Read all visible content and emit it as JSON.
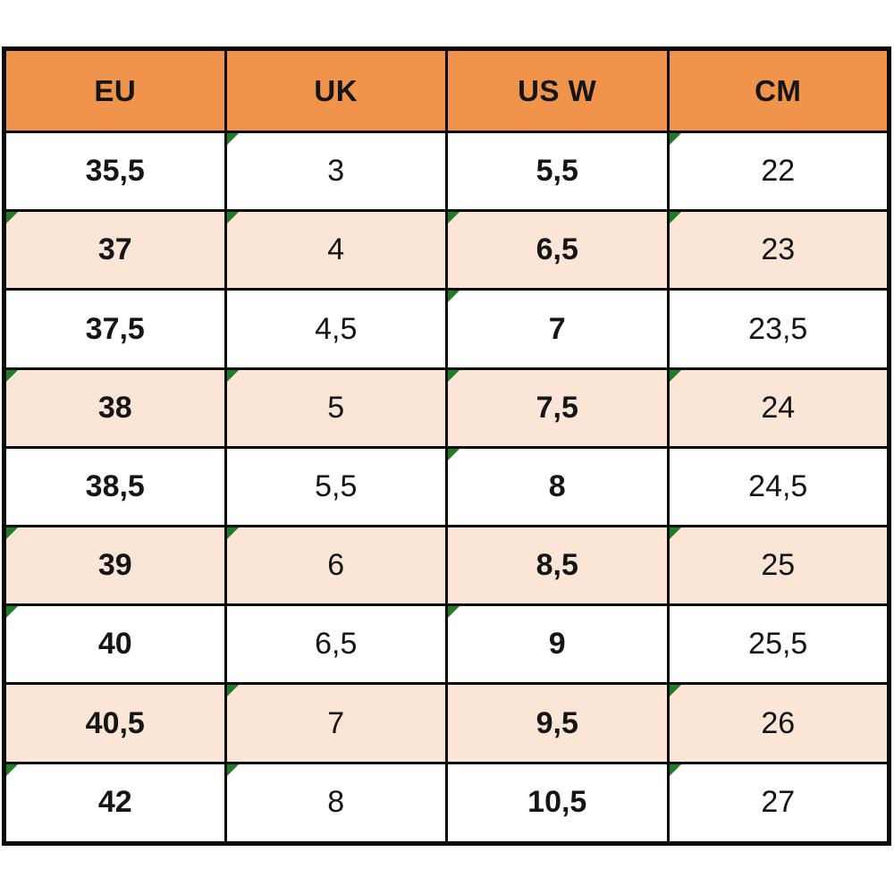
{
  "page": {
    "background": "#ffffff"
  },
  "table": {
    "colors": {
      "header_bg": "#f0944b",
      "header_text": "#181512",
      "row_white_bg": "#ffffff",
      "row_peach_bg": "#fae5d6",
      "cell_text": "#151515",
      "grid_border": "#0a0a0a",
      "corner_marker_green": "#1f7d24"
    },
    "columns": [
      {
        "key": "eu",
        "label": "EU",
        "bold_values": true
      },
      {
        "key": "uk",
        "label": "UK",
        "bold_values": false
      },
      {
        "key": "usw",
        "label": "US W",
        "bold_values": true
      },
      {
        "key": "cm",
        "label": "CM",
        "bold_values": false
      }
    ],
    "rows": [
      {
        "shaded": false,
        "cells": {
          "eu": "35,5",
          "uk": "3",
          "usw": "5,5",
          "cm": "22"
        },
        "markers": [
          "uk",
          "cm"
        ]
      },
      {
        "shaded": true,
        "cells": {
          "eu": "37",
          "uk": "4",
          "usw": "6,5",
          "cm": "23"
        },
        "markers": [
          "eu",
          "uk",
          "usw",
          "cm"
        ]
      },
      {
        "shaded": false,
        "cells": {
          "eu": "37,5",
          "uk": "4,5",
          "usw": "7",
          "cm": "23,5"
        },
        "markers": [
          "usw"
        ]
      },
      {
        "shaded": true,
        "cells": {
          "eu": "38",
          "uk": "5",
          "usw": "7,5",
          "cm": "24"
        },
        "markers": [
          "eu",
          "uk",
          "usw",
          "cm"
        ]
      },
      {
        "shaded": false,
        "cells": {
          "eu": "38,5",
          "uk": "5,5",
          "usw": "8",
          "cm": "24,5"
        },
        "markers": [
          "usw"
        ]
      },
      {
        "shaded": true,
        "cells": {
          "eu": "39",
          "uk": "6",
          "usw": "8,5",
          "cm": "25"
        },
        "markers": [
          "eu",
          "uk",
          "cm"
        ]
      },
      {
        "shaded": false,
        "cells": {
          "eu": "40",
          "uk": "6,5",
          "usw": "9",
          "cm": "25,5"
        },
        "markers": [
          "eu",
          "usw"
        ]
      },
      {
        "shaded": true,
        "cells": {
          "eu": "40,5",
          "uk": "7",
          "usw": "9,5",
          "cm": "26"
        },
        "markers": [
          "uk",
          "cm"
        ]
      },
      {
        "shaded": false,
        "cells": {
          "eu": "42",
          "uk": "8",
          "usw": "10,5",
          "cm": "27"
        },
        "markers": [
          "eu",
          "uk",
          "cm"
        ]
      }
    ]
  },
  "chart_data": {
    "type": "table",
    "columns": [
      "EU",
      "UK",
      "US W",
      "CM"
    ],
    "rows": [
      [
        "35,5",
        "3",
        "5,5",
        "22"
      ],
      [
        "37",
        "4",
        "6,5",
        "23"
      ],
      [
        "37,5",
        "4,5",
        "7",
        "23,5"
      ],
      [
        "38",
        "5",
        "7,5",
        "24"
      ],
      [
        "38,5",
        "5,5",
        "8",
        "24,5"
      ],
      [
        "39",
        "6",
        "8,5",
        "25"
      ],
      [
        "40",
        "6,5",
        "9",
        "25,5"
      ],
      [
        "40,5",
        "7",
        "9,5",
        "26"
      ],
      [
        "42",
        "8",
        "10,5",
        "27"
      ]
    ],
    "layout": {
      "grid": true,
      "header_fill": "#f0944b",
      "alternating_row_fill": "#fae5d6"
    }
  }
}
